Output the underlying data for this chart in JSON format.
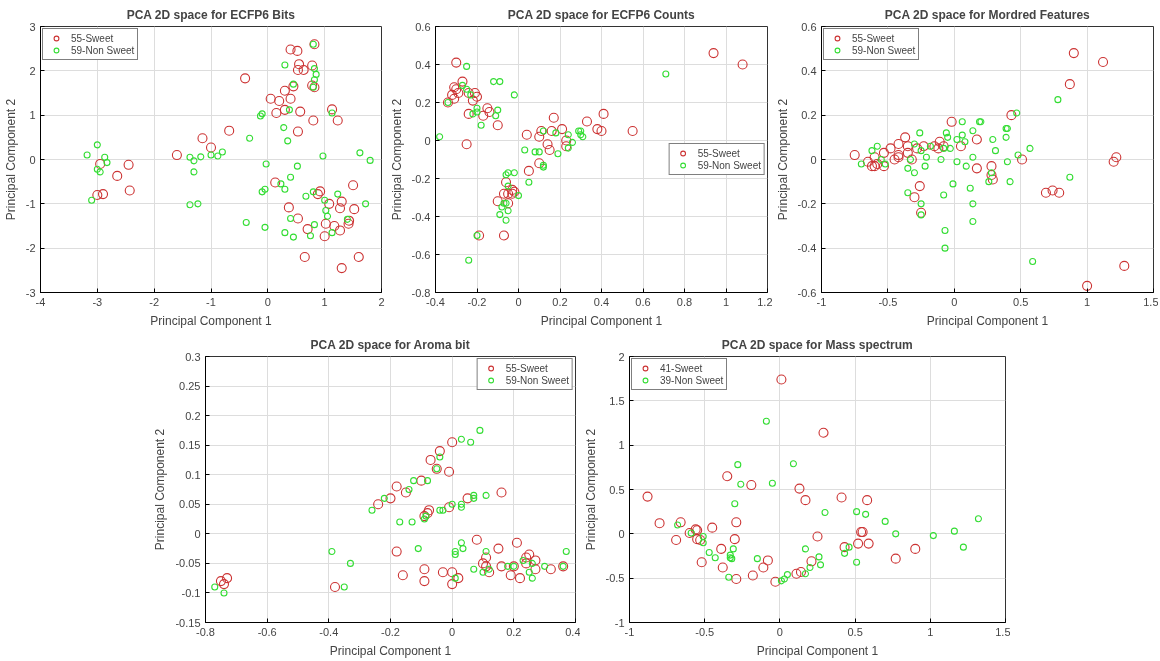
{
  "chart_data": [
    {
      "type": "scatter",
      "title": "PCA 2D space for ECFP6 Bits",
      "xlabel": "Principal Component 1",
      "ylabel": "Principal Component 2",
      "xlim": [
        -4,
        2
      ],
      "ylim": [
        -3,
        3
      ],
      "xticks": [
        -4,
        -3,
        -2,
        -1,
        0,
        1,
        2
      ],
      "yticks": [
        -3,
        -2,
        -1,
        0,
        1,
        2,
        3
      ],
      "grid": true,
      "legend": "top left",
      "marker": "circle",
      "series": [
        {
          "name": "55-Sweet",
          "color": "#cc3333",
          "x": [
            -3.0,
            -2.9,
            -2.95,
            -2.65,
            -2.45,
            -2.43,
            -1.6,
            -1.15,
            -1.0,
            -0.68,
            -0.4,
            0.05,
            0.2,
            0.15,
            0.3,
            0.3,
            0.4,
            0.45,
            0.57,
            0.53,
            0.8,
            0.4,
            0.52,
            0.55,
            0.53,
            0.63,
            0.82,
            0.78,
            0.78,
            0.82,
            1.13,
            1.23,
            0.13,
            0.92,
            0.88,
            1.5,
            0.37,
            1.08,
            1.3,
            1.27,
            1.52,
            0.53,
            0.7,
            1.02,
            1.17,
            1.27,
            1.43,
            1.42,
            1.0,
            0.65,
            1.6,
            1.3
          ],
          "values": [
            -0.8,
            -0.78,
            -0.1,
            -0.37,
            -0.12,
            -0.7,
            0.1,
            0.48,
            0.27,
            0.65,
            1.83,
            1.37,
            1.32,
            1.05,
            1.12,
            1.55,
            1.37,
            1.65,
            1.08,
            0.63,
            0.88,
            2.48,
            2.45,
            2.15,
            2.02,
            2.02,
            2.6,
            2.12,
            1.67,
            1.63,
            1.13,
            0.88,
            -0.52,
            -0.72,
            -0.78,
            -0.58,
            -1.08,
            -1.0,
            -0.95,
            -1.1,
            -1.12,
            -1.33,
            -1.57,
            -1.45,
            -1.5,
            -1.6,
            -1.38,
            -1.45,
            -1.73,
            -2.2,
            -2.2,
            -2.45
          ]
        },
        {
          "name": "59-Non Sweet",
          "color": "#33dd33",
          "x": [
            -3.18,
            -3.0,
            -2.87,
            -2.83,
            -3.0,
            -2.95,
            -3.1,
            -1.37,
            -1.3,
            -1.3,
            -1.18,
            -1.0,
            -0.88,
            -0.8,
            -1.37,
            -1.23,
            -0.32,
            -0.13,
            -0.1,
            0.3,
            0.45,
            0.38,
            0.28,
            0.35,
            0.8,
            0.82,
            0.85,
            0.82,
            0.8,
            1.13,
            0.97,
            1.62,
            1.8,
            -0.03,
            0.52,
            0.4,
            0.23,
            0.3,
            -0.1,
            -0.05,
            0.67,
            0.8,
            1.0,
            1.23,
            1.72,
            1.02,
            1.05,
            -0.38,
            -0.05,
            0.4,
            0.82,
            1.4,
            0.3,
            0.45,
            0.75,
            1.13
          ],
          "values": [
            0.1,
            0.33,
            0.05,
            -0.07,
            -0.22,
            -0.28,
            -0.92,
            0.05,
            -0.03,
            -0.28,
            0.06,
            0.1,
            0.08,
            0.17,
            -1.02,
            -1.0,
            0.48,
            0.98,
            1.03,
            2.13,
            1.7,
            1.12,
            0.72,
            0.42,
            2.6,
            2.05,
            1.92,
            1.8,
            1.63,
            1.05,
            0.08,
            0.15,
            -0.02,
            -0.1,
            -0.15,
            -0.4,
            -0.55,
            -0.67,
            -0.73,
            -0.67,
            -0.83,
            -0.73,
            -0.92,
            -0.78,
            -1.0,
            -1.15,
            -1.28,
            -1.42,
            -1.53,
            -1.33,
            -1.47,
            -1.35,
            -1.65,
            -1.75,
            -1.72,
            -1.65
          ]
        }
      ]
    },
    {
      "type": "scatter",
      "title": "PCA 2D space for ECFP6 Counts",
      "xlabel": "Principal Component 1",
      "ylabel": "Principal Component 2",
      "xlim": [
        -0.4,
        1.2
      ],
      "ylim": [
        -0.8,
        0.6
      ],
      "xticks": [
        -0.4,
        -0.2,
        0,
        0.2,
        0.4,
        0.6,
        0.8,
        1,
        1.2
      ],
      "yticks": [
        -0.8,
        -0.6,
        -0.4,
        -0.2,
        0,
        0.2,
        0.4,
        0.6
      ],
      "grid": true,
      "legend": "right",
      "marker": "circle",
      "series": [
        {
          "name": "55-Sweet",
          "color": "#cc3333",
          "x": [
            -0.3,
            -0.27,
            -0.31,
            -0.3,
            -0.32,
            -0.31,
            -0.29,
            -0.34,
            -0.24,
            -0.21,
            -0.2,
            -0.22,
            -0.24,
            -0.15,
            -0.17,
            -0.14,
            -0.1,
            -0.25,
            0.04,
            0.11,
            0.1,
            0.17,
            0.21,
            0.16,
            0.14,
            0.15,
            0.23,
            0.23,
            0.33,
            0.38,
            0.4,
            0.41,
            0.55,
            0.94,
            1.08,
            0.1,
            0.05,
            -0.06,
            -0.05,
            -0.07,
            -0.03,
            -0.02,
            -0.03,
            -0.1,
            -0.05,
            -0.19,
            -0.07
          ],
          "values": [
            0.41,
            0.31,
            0.28,
            0.27,
            0.24,
            0.22,
            0.25,
            0.2,
            0.25,
            0.25,
            0.23,
            0.21,
            0.14,
            0.17,
            0.13,
            0.15,
            0.08,
            -0.02,
            0.03,
            0.05,
            0.02,
            0.12,
            0.06,
            0.05,
            -0.02,
            -0.05,
            0.0,
            -0.03,
            0.1,
            0.06,
            0.05,
            0.14,
            0.05,
            0.46,
            0.4,
            -0.12,
            -0.16,
            -0.22,
            -0.28,
            -0.28,
            -0.26,
            -0.27,
            -0.28,
            -0.32,
            -0.33,
            -0.5,
            -0.5
          ]
        },
        {
          "name": "59-Non Sweet",
          "color": "#33dd33",
          "x": [
            -0.38,
            -0.34,
            -0.25,
            -0.27,
            -0.25,
            -0.23,
            -0.22,
            -0.2,
            -0.2,
            -0.18,
            -0.12,
            -0.09,
            -0.11,
            -0.1,
            -0.02,
            0.03,
            0.08,
            0.1,
            0.12,
            0.12,
            0.18,
            0.19,
            0.12,
            0.24,
            0.24,
            0.26,
            0.29,
            0.3,
            0.3,
            0.31,
            0.71,
            0.05,
            0.0,
            -0.06,
            -0.05,
            -0.02,
            -0.08,
            -0.07,
            -0.06,
            -0.09,
            -0.05,
            -0.06,
            -0.2,
            -0.24,
            -0.05
          ],
          "values": [
            0.02,
            0.2,
            0.39,
            0.29,
            0.27,
            0.24,
            0.14,
            0.17,
            0.15,
            0.08,
            0.31,
            0.31,
            0.13,
            0.16,
            0.24,
            -0.05,
            -0.06,
            -0.06,
            -0.13,
            -0.14,
            0.04,
            -0.07,
            0.05,
            0.03,
            -0.04,
            -0.01,
            0.05,
            0.05,
            0.03,
            0.02,
            0.35,
            -0.22,
            -0.29,
            -0.18,
            -0.17,
            -0.17,
            -0.35,
            -0.33,
            -0.33,
            -0.39,
            -0.37,
            -0.42,
            -0.5,
            -0.63,
            -0.24
          ]
        }
      ]
    },
    {
      "type": "scatter",
      "title": "PCA 2D space for Mordred Features",
      "xlabel": "Principal Component 1",
      "ylabel": "Principal Component 2",
      "xlim": [
        -1,
        1.5
      ],
      "ylim": [
        -0.6,
        0.6
      ],
      "xticks": [
        -1,
        -0.5,
        0,
        0.5,
        1,
        1.5
      ],
      "yticks": [
        -0.6,
        -0.4,
        -0.2,
        0,
        0.2,
        0.4,
        0.6
      ],
      "grid": true,
      "legend": "top left",
      "marker": "circle",
      "series": [
        {
          "name": "55-Sweet",
          "color": "#cc3333",
          "x": [
            -0.75,
            -0.65,
            -0.62,
            -0.6,
            -0.58,
            -0.6,
            -0.53,
            -0.53,
            -0.48,
            -0.45,
            -0.42,
            -0.42,
            -0.42,
            -0.37,
            -0.35,
            -0.35,
            -0.32,
            -0.28,
            -0.23,
            -0.15,
            -0.12,
            -0.11,
            -0.08,
            -0.02,
            0.05,
            0.17,
            0.17,
            0.28,
            0.28,
            0.29,
            0.43,
            0.51,
            -0.26,
            -0.3,
            -0.25,
            0.69,
            0.74,
            0.79,
            0.87,
            0.9,
            1.12,
            1.2,
            1.22,
            1.0,
            1.28
          ],
          "values": [
            0.02,
            -0.01,
            -0.03,
            0.01,
            -0.02,
            -0.03,
            0.03,
            -0.03,
            0.05,
            0.0,
            0.07,
            0.02,
            0.01,
            0.1,
            0.06,
            0.03,
            0.0,
            0.05,
            0.06,
            0.06,
            0.05,
            0.08,
            0.06,
            0.17,
            0.06,
            0.09,
            -0.04,
            -0.03,
            -0.07,
            -0.09,
            0.2,
            0.0,
            -0.12,
            -0.17,
            -0.24,
            -0.15,
            -0.14,
            -0.15,
            0.34,
            0.48,
            0.44,
            -0.01,
            0.01,
            -0.57,
            -0.48
          ]
        },
        {
          "name": "59-Non Sweet",
          "color": "#33dd33",
          "x": [
            -0.7,
            -0.62,
            -0.58,
            -0.55,
            -0.52,
            -0.35,
            -0.33,
            -0.3,
            -0.3,
            -0.26,
            -0.25,
            -0.22,
            -0.21,
            -0.18,
            -0.1,
            -0.08,
            -0.06,
            -0.05,
            -0.03,
            0.02,
            0.02,
            0.06,
            0.06,
            0.08,
            0.09,
            0.14,
            0.14,
            0.19,
            0.2,
            0.29,
            0.31,
            0.39,
            0.4,
            0.39,
            0.4,
            0.42,
            0.47,
            0.48,
            0.57,
            0.78,
            0.87,
            -0.35,
            -0.25,
            -0.25,
            -0.08,
            -0.01,
            0.12,
            0.14,
            0.14,
            0.26,
            -0.07,
            -0.07,
            0.59,
            0.28
          ],
          "values": [
            -0.02,
            0.04,
            0.06,
            0.0,
            -0.02,
            -0.04,
            0.0,
            0.07,
            -0.06,
            0.12,
            0.04,
            -0.03,
            0.01,
            0.06,
            0.0,
            0.05,
            0.12,
            0.1,
            0.05,
            0.09,
            -0.01,
            0.17,
            0.11,
            0.08,
            -0.03,
            0.13,
            0.01,
            0.17,
            0.17,
            0.09,
            0.04,
            0.14,
            0.14,
            0.1,
            -0.01,
            -0.1,
            0.21,
            0.02,
            0.05,
            0.27,
            -0.08,
            -0.15,
            -0.2,
            -0.25,
            -0.16,
            -0.11,
            -0.13,
            -0.2,
            -0.28,
            -0.1,
            -0.32,
            -0.4,
            -0.46,
            -0.06
          ]
        }
      ]
    },
    {
      "type": "scatter",
      "title": "PCA 2D space for Aroma bit",
      "xlabel": "Principal Component 1",
      "ylabel": "Principal Component 2",
      "xlim": [
        -0.8,
        0.4
      ],
      "ylim": [
        -0.15,
        0.3
      ],
      "xticks": [
        -0.8,
        -0.6,
        -0.4,
        -0.2,
        0,
        0.2,
        0.4
      ],
      "yticks": [
        -0.15,
        -0.1,
        -0.05,
        0,
        0.05,
        0.1,
        0.15,
        0.2,
        0.25,
        0.3
      ],
      "grid": true,
      "legend": "top right",
      "marker": "circle",
      "series": [
        {
          "name": "55-Sweet",
          "color": "#cc3333",
          "x": [
            -0.75,
            -0.74,
            -0.73,
            -0.38,
            -0.24,
            -0.2,
            -0.18,
            -0.15,
            -0.1,
            -0.07,
            -0.04,
            -0.05,
            -0.01,
            0.0,
            -0.09,
            -0.08,
            -0.075,
            -0.01,
            0.05,
            0.16,
            -0.18,
            -0.16,
            -0.09,
            -0.09,
            -0.03,
            0.0,
            0.0,
            0.02,
            0.08,
            0.1,
            0.11,
            0.11,
            0.12,
            0.15,
            0.16,
            0.19,
            0.2,
            0.21,
            0.22,
            0.24,
            0.24,
            0.25,
            0.27,
            0.27,
            0.32,
            0.36
          ],
          "values": [
            -0.08,
            -0.085,
            -0.075,
            -0.09,
            0.05,
            0.06,
            0.08,
            0.07,
            0.09,
            0.125,
            0.14,
            0.11,
            0.105,
            0.155,
            0.03,
            0.035,
            0.04,
            0.045,
            0.06,
            0.07,
            -0.03,
            -0.07,
            -0.06,
            -0.08,
            -0.065,
            -0.065,
            -0.085,
            -0.075,
            -0.01,
            -0.05,
            -0.04,
            -0.055,
            -0.065,
            -0.025,
            -0.055,
            -0.07,
            -0.055,
            -0.015,
            -0.075,
            -0.04,
            -0.05,
            -0.035,
            -0.045,
            -0.06,
            -0.06,
            -0.055
          ]
        },
        {
          "name": "59-Non Sweet",
          "color": "#33dd33",
          "x": [
            -0.77,
            -0.74,
            -0.39,
            -0.35,
            -0.33,
            -0.26,
            -0.22,
            -0.17,
            -0.14,
            -0.13,
            -0.125,
            -0.08,
            -0.09,
            -0.085,
            -0.05,
            -0.04,
            -0.04,
            -0.03,
            0.0,
            0.03,
            0.03,
            0.03,
            0.06,
            0.07,
            0.07,
            0.11,
            0.09,
            -0.11,
            0.01,
            0.01,
            0.03,
            0.035,
            0.07,
            0.1,
            0.11,
            0.12,
            0.18,
            0.2,
            0.23,
            0.25,
            0.26,
            0.26,
            0.3,
            0.36,
            0.37,
            0.01
          ],
          "values": [
            -0.09,
            -0.1,
            -0.03,
            -0.09,
            -0.05,
            0.04,
            0.06,
            0.02,
            0.075,
            0.02,
            0.09,
            0.09,
            0.025,
            0.03,
            0.11,
            0.13,
            0.04,
            0.04,
            0.05,
            0.05,
            0.045,
            0.16,
            0.155,
            0.06,
            0.065,
            0.065,
            0.175,
            -0.025,
            -0.03,
            -0.035,
            -0.015,
            -0.025,
            -0.06,
            -0.065,
            -0.03,
            -0.06,
            -0.055,
            -0.055,
            -0.045,
            -0.065,
            -0.075,
            -0.05,
            -0.055,
            -0.055,
            -0.03,
            -0.075
          ]
        }
      ]
    },
    {
      "type": "scatter",
      "title": "PCA 2D space for Mass spectrum",
      "xlabel": "Principal Component 1",
      "ylabel": "Principal Component 2",
      "xlim": [
        -1,
        1.5
      ],
      "ylim": [
        -1,
        2
      ],
      "xticks": [
        -1,
        -0.5,
        0,
        0.5,
        1,
        1.5
      ],
      "yticks": [
        -1,
        -0.5,
        0,
        0.5,
        1,
        1.5,
        2
      ],
      "grid": true,
      "legend": "top left",
      "marker": "circle",
      "series": [
        {
          "name": "41-Sweet",
          "color": "#cc3333",
          "x": [
            -0.88,
            -0.8,
            -0.69,
            -0.66,
            -0.6,
            -0.56,
            -0.55,
            -0.55,
            -0.53,
            -0.52,
            -0.45,
            -0.39,
            -0.38,
            -0.35,
            -0.29,
            -0.3,
            -0.29,
            -0.19,
            -0.18,
            -0.11,
            -0.08,
            0.01,
            -0.03,
            0.11,
            0.13,
            0.14,
            0.17,
            0.21,
            0.25,
            0.29,
            0.41,
            0.43,
            0.52,
            0.54,
            0.55,
            0.58,
            0.59,
            0.77,
            0.9
          ],
          "values": [
            0.42,
            0.12,
            -0.07,
            0.13,
            0.01,
            0.05,
            0.04,
            -0.06,
            -0.07,
            -0.32,
            0.07,
            -0.17,
            -0.38,
            0.65,
            0.13,
            -0.06,
            -0.51,
            0.55,
            -0.47,
            -0.38,
            -0.3,
            1.74,
            -0.54,
            -0.45,
            0.51,
            -0.43,
            0.38,
            -0.31,
            -0.03,
            1.14,
            0.41,
            -0.15,
            -0.11,
            0.02,
            0.02,
            0.38,
            -0.11,
            -0.28,
            -0.17
          ]
        },
        {
          "name": "39-Non Sweet",
          "color": "#33dd33",
          "x": [
            -0.68,
            -0.59,
            -0.51,
            -0.51,
            -0.47,
            -0.43,
            -0.34,
            -0.33,
            -0.33,
            -0.32,
            -0.31,
            -0.3,
            -0.28,
            -0.26,
            -0.15,
            -0.09,
            -0.05,
            0.01,
            0.03,
            0.05,
            0.09,
            0.17,
            0.17,
            0.2,
            0.26,
            0.27,
            0.3,
            0.43,
            0.46,
            0.51,
            0.51,
            0.57,
            0.7,
            0.77,
            1.02,
            1.16,
            1.22,
            1.32
          ],
          "values": [
            0.1,
            0.01,
            -0.03,
            -0.1,
            -0.21,
            -0.27,
            -0.49,
            -0.24,
            -0.27,
            -0.28,
            -0.17,
            0.34,
            0.78,
            0.56,
            -0.28,
            1.27,
            0.57,
            -0.53,
            -0.51,
            -0.46,
            0.79,
            -0.17,
            -0.45,
            -0.38,
            -0.26,
            -0.35,
            0.24,
            -0.22,
            -0.15,
            0.25,
            -0.32,
            0.22,
            0.14,
            0.0,
            -0.02,
            0.03,
            -0.15,
            0.17
          ]
        }
      ]
    }
  ]
}
